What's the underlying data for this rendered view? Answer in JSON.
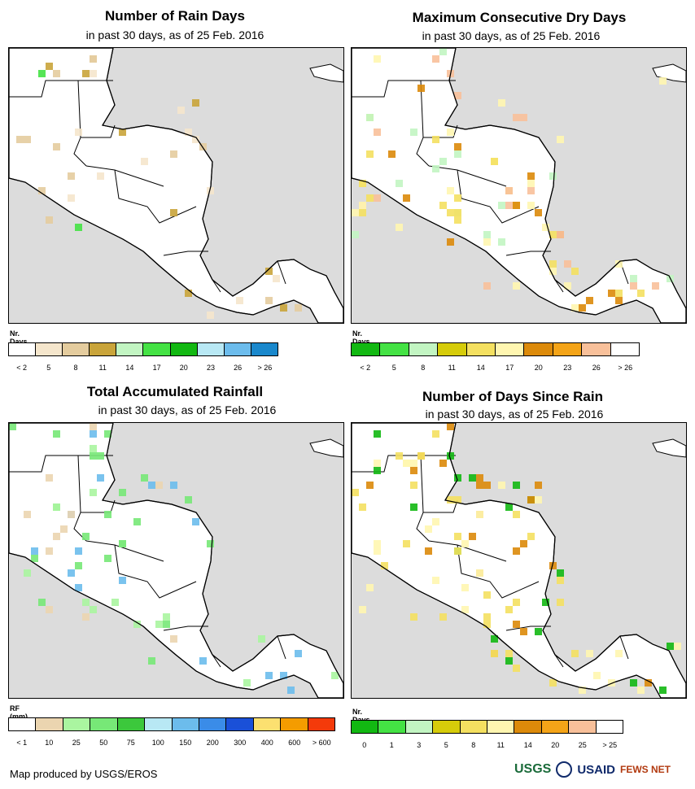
{
  "panels": [
    {
      "id": "rain-days",
      "title": "Number of Rain Days",
      "subtitle": "in past 30 days, as of 25 Feb. 2016",
      "legend_title": "Nr. Days",
      "legend_colors": [
        "#ffffff",
        "#f5e6cc",
        "#e4cc9e",
        "#c9a43a",
        "#c2f5c2",
        "#44e244",
        "#12b812",
        "#b8e8f4",
        "#6cbcec",
        "#1a88cc"
      ],
      "legend_ticks": [
        "< 2",
        "5",
        "8",
        "11",
        "14",
        "17",
        "20",
        "23",
        "26",
        "> 26"
      ],
      "fill_palette": [
        "#f5e6cc",
        "#e4cc9e",
        "#c9a43a",
        "#44e244"
      ]
    },
    {
      "id": "max-dry-days",
      "title": "Maximum Consecutive Dry Days",
      "subtitle": "in past 30 days, as of 25 Feb. 2016",
      "legend_title": "Nr. Days",
      "legend_colors": [
        "#12b812",
        "#44e244",
        "#c2f5c2",
        "#d6cc0a",
        "#f4e060",
        "#fff6b0",
        "#dc8a0a",
        "#f4a418",
        "#f8c09a",
        "#ffffff"
      ],
      "legend_ticks": [
        "< 2",
        "5",
        "8",
        "11",
        "14",
        "17",
        "20",
        "23",
        "26",
        "> 26"
      ],
      "fill_palette": [
        "#fff6b0",
        "#f4e060",
        "#dc8a0a",
        "#f8c09a",
        "#c2f5c2"
      ]
    },
    {
      "id": "total-rainfall",
      "title": "Total Accumulated Rainfall",
      "subtitle": "in past 30 days, as of 25 Feb. 2016",
      "legend_title": "RF (mm)",
      "legend_colors": [
        "#ffffff",
        "#ebd5b0",
        "#aaf5a0",
        "#77e877",
        "#3cc83c",
        "#b8e8f4",
        "#6cbcec",
        "#3a8ce8",
        "#1a50d8",
        "#fce070",
        "#f49c00",
        "#f43a0a"
      ],
      "legend_ticks": [
        "< 1",
        "10",
        "25",
        "50",
        "75",
        "100",
        "150",
        "200",
        "300",
        "400",
        "600",
        "> 600"
      ],
      "fill_palette": [
        "#aaf5a0",
        "#77e877",
        "#ebd5b0",
        "#6cbcec"
      ]
    },
    {
      "id": "days-since-rain",
      "title": "Number of Days Since Rain",
      "subtitle": "in past 30 days, as of 25 Feb. 2016",
      "legend_title": "Nr. Days",
      "legend_colors": [
        "#12b812",
        "#44e244",
        "#c2f5c2",
        "#d6cc0a",
        "#f4e060",
        "#fff6b0",
        "#dc8a0a",
        "#f4a418",
        "#f8c09a",
        "#ffffff"
      ],
      "legend_ticks": [
        "0",
        "1",
        "3",
        "5",
        "8",
        "11",
        "14",
        "20",
        "25",
        "> 25"
      ],
      "fill_palette": [
        "#12b812",
        "#fff6b0",
        "#dc8a0a",
        "#f4e060"
      ]
    }
  ],
  "map_colors": {
    "ocean": "#dcdcdc",
    "land": "#ffffff",
    "border": "#000000"
  },
  "footer": "Map produced by USGS/EROS",
  "logos": {
    "usgs": "USGS",
    "usaid": "USAID",
    "fews": "FEWS NET"
  }
}
